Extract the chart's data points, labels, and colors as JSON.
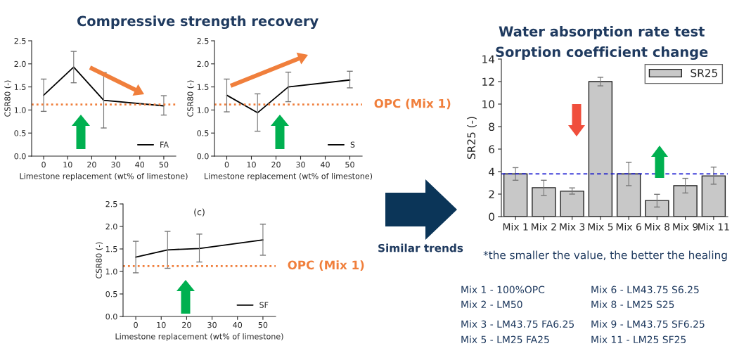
{
  "chart_data": [
    {
      "type": "line",
      "title": "Compressive strength recovery",
      "xlabel": "Limestone replacement (wt% of limestone)",
      "ylabel": "CSR80 (-)",
      "x": [
        0,
        12.5,
        25,
        50
      ],
      "series": [
        {
          "name": "FA",
          "color": "#000000",
          "values": [
            1.32,
            1.93,
            1.21,
            1.09
          ],
          "errors": [
            [
              0.97,
              1.67
            ],
            [
              1.59,
              2.27
            ],
            [
              0.61,
              1.81
            ],
            [
              0.89,
              1.31
            ]
          ]
        }
      ],
      "xlim": [
        -5,
        55
      ],
      "xticks": [
        0,
        10,
        20,
        30,
        40,
        50
      ],
      "ylim": [
        0,
        2.5
      ],
      "yticks": [
        {
          "value": 0,
          "label": "0.0"
        },
        0.5,
        {
          "value": 1,
          "label": "1.0"
        },
        1.5,
        {
          "value": 2,
          "label": "2.0"
        },
        2.5
      ],
      "ref_lines": [
        {
          "axis": "y",
          "value": 1.12,
          "color": "#f07f3c",
          "line_style": "dotted"
        }
      ],
      "legend": "bottom right",
      "grid": false
    },
    {
      "type": "line",
      "xlabel": "Limestone replacement (wt% of limestone)",
      "ylabel": "CSR80 (-)",
      "x": [
        0,
        12.5,
        25,
        50
      ],
      "series": [
        {
          "name": "S",
          "color": "#000000",
          "values": [
            1.32,
            0.94,
            1.5,
            1.65
          ],
          "errors": [
            [
              0.96,
              1.67
            ],
            [
              0.54,
              1.35
            ],
            [
              1.18,
              1.82
            ],
            [
              1.48,
              1.84
            ]
          ]
        }
      ],
      "xlim": [
        -5,
        55
      ],
      "xticks": [
        0,
        10,
        20,
        30,
        40,
        50
      ],
      "ylim": [
        0,
        2.5
      ],
      "yticks": [
        {
          "value": 0,
          "label": "0.0"
        },
        0.5,
        {
          "value": 1,
          "label": "1.0"
        },
        1.5,
        {
          "value": 2,
          "label": "2.0"
        },
        2.5
      ],
      "ref_lines": [
        {
          "axis": "y",
          "value": 1.12,
          "label": "OPC (Mix 1)",
          "color": "#f07f3c",
          "line_style": "dotted"
        }
      ],
      "legend": "bottom right",
      "grid": false
    },
    {
      "type": "line",
      "xlabel": "Limestone replacement (wt% of limestone)",
      "ylabel": "CSR80 (-)",
      "annotations": [
        "(c)"
      ],
      "x": [
        0,
        12.5,
        25,
        50
      ],
      "series": [
        {
          "name": "SF",
          "color": "#000000",
          "values": [
            1.32,
            1.48,
            1.51,
            1.7
          ],
          "errors": [
            [
              0.97,
              1.67
            ],
            [
              1.07,
              1.89
            ],
            [
              1.21,
              1.83
            ],
            [
              1.36,
              2.05
            ]
          ]
        }
      ],
      "xlim": [
        -5,
        55
      ],
      "xticks": [
        0,
        10,
        20,
        30,
        40,
        50
      ],
      "ylim": [
        0,
        2.5
      ],
      "yticks": [
        {
          "value": 0,
          "label": "0.0"
        },
        0.5,
        {
          "value": 1,
          "label": "1.0"
        },
        1.5,
        {
          "value": 2,
          "label": "2.0"
        },
        2.5
      ],
      "ref_lines": [
        {
          "axis": "y",
          "value": 1.12,
          "label": "OPC (Mix 1)",
          "color": "#f07f3c",
          "line_style": "dotted"
        }
      ],
      "legend": "bottom right",
      "grid": false
    },
    {
      "type": "bar",
      "title": "Water absorption rate test\nSorption coefficient change",
      "ylabel": "SR25 (-)",
      "categories": [
        "Mix 1",
        "Mix 2",
        "Mix 3",
        "Mix 5",
        "Mix 6",
        "Mix 8",
        "Mix 9",
        "Mix 11"
      ],
      "series": [
        {
          "name": "SR25",
          "color": "#c8c8c8",
          "values": [
            3.8,
            2.57,
            2.26,
            12.0,
            3.8,
            1.43,
            2.75,
            3.62
          ],
          "errors": [
            [
              3.23,
              4.35
            ],
            [
              1.88,
              3.23
            ],
            [
              2.0,
              2.55
            ],
            [
              11.62,
              12.38
            ],
            [
              2.75,
              4.83
            ],
            [
              0.85,
              1.98
            ],
            [
              2.1,
              3.4
            ],
            [
              2.88,
              4.4
            ]
          ]
        }
      ],
      "ylim": [
        0,
        14
      ],
      "yticks": [
        0,
        2,
        4,
        6,
        8,
        10,
        12,
        14
      ],
      "ref_lines": [
        {
          "axis": "y",
          "value": 3.8,
          "color": "#0000cc",
          "line_style": "dashed"
        }
      ],
      "legend": "top right",
      "grid": false,
      "annotations": [
        "*the smaller the value, the better the healing",
        "Mix 1 - 100%OPC",
        "Mix 2 - LM50",
        "Mix 3 - LM43.75 FA6.25",
        "Mix 5 - LM25 FA25",
        "Mix 6 - LM43.75 S6.25",
        "Mix 8 - LM25 S25",
        "Mix 9 - LM43.75 SF6.25",
        "Mix 11 - LM25 SF25",
        "Similar trends"
      ]
    }
  ]
}
